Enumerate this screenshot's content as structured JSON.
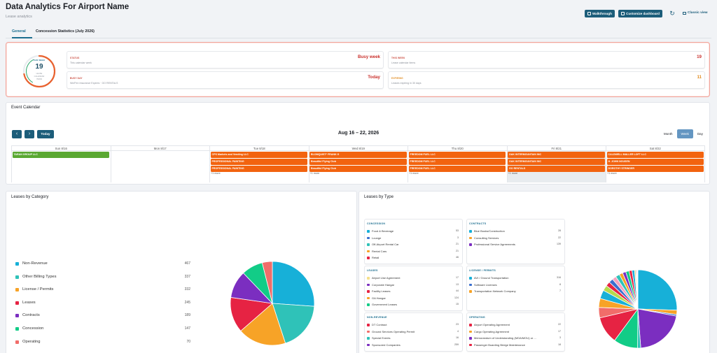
{
  "header": {
    "title": "Data Analytics For Airport Name",
    "subtitle": "Lease analytics",
    "walkthrough_label": "Walkthrough",
    "customize_label": "Customize dashboard",
    "classic_label": "Classic view"
  },
  "tabs": [
    {
      "label": "General",
      "active": true
    },
    {
      "label": "Concession Statistics (July 2026)",
      "active": false
    }
  ],
  "summary": {
    "ring": {
      "label": "THIS WEEK",
      "value": "19",
      "sub1": "LEASE",
      "sub2": "CALENDAR",
      "sub3": "ITEMS",
      "progress": 0.72
    },
    "cards": [
      {
        "label": "STATUS",
        "desc": "This calendar week",
        "value": "Busy week",
        "accent": "red"
      },
      {
        "label": "THIS WEEK",
        "desc": "Lease calendar items",
        "value": "19",
        "accent": "red"
      },
      {
        "label": "BUSY DAY",
        "desc": "We/Fen Insurance Expires · GO RENTALS",
        "value": "Today",
        "accent": "red"
      },
      {
        "label": "EXPIRING",
        "desc": "Leases expiring in 30 days",
        "value": "11",
        "accent": "orange"
      }
    ]
  },
  "calendar": {
    "title": "Event Calendar",
    "range": "Aug 16 – 22, 2026",
    "today_label": "Today",
    "prev_icon": "‹",
    "next_icon": "›",
    "views": [
      {
        "label": "Month",
        "active": false
      },
      {
        "label": "Week",
        "active": true
      },
      {
        "label": "Day",
        "active": false
      }
    ],
    "days": [
      {
        "label": "Sun 8/16",
        "events": [
          "TARAN GROUP LLC"
        ],
        "event_color": "green",
        "more": ""
      },
      {
        "label": "Mon 8/17",
        "events": [],
        "event_color": "orange",
        "more": ""
      },
      {
        "label": "Tue 8/18",
        "events": [
          "CPS Markets and Vending LLC",
          "PROFESSIONAL PAINTING",
          "PROFESSIONAL PAINTING"
        ],
        "event_color": "orange",
        "more": "+1 more"
      },
      {
        "label": "Wed 8/19",
        "events": [
          "BLOMQUIST* FRANK G",
          "Beautiful Flying Club",
          "Beautiful Flying Club"
        ],
        "event_color": "orange",
        "more": "+1 more"
      },
      {
        "label": "Thu 8/20",
        "events": [
          "FREEDOM FUEL LLC",
          "FREEDOM FUEL LLC",
          "FREEDOM FUEL LLC"
        ],
        "event_color": "orange",
        "more": "+1 more"
      },
      {
        "label": "Fri 8/21",
        "events": [
          "OAK INTERMOUNTAIN INC",
          "OAK INTERMOUNTAIN INC",
          "GO RENTALS"
        ],
        "event_color": "orange",
        "more": "+1 more",
        "shade": true
      },
      {
        "label": "Sat 8/22",
        "events": [
          "CALDWELL MALLER LOFT LLC",
          "H. JOHN NOUSEN",
          "DOROTHY STRINGER"
        ],
        "event_color": "orange",
        "more": "+1 more"
      }
    ]
  },
  "leases_by_category": {
    "title": "Leases by Category",
    "chart_data": {
      "type": "pie",
      "categories": [
        "Non-Revenue",
        "Other Billing Types",
        "License / Permits",
        "Leases",
        "Contracts",
        "Concession",
        "Operating"
      ],
      "values": [
        467,
        337,
        332,
        245,
        189,
        147,
        70
      ],
      "colors": [
        "#17b0d8",
        "#2fc2b8",
        "#f7a327",
        "#e62343",
        "#7b2ec0",
        "#12cc87",
        "#f16d6a"
      ]
    }
  },
  "leases_by_type": {
    "title": "Leases by Type",
    "groups": [
      {
        "title": "CONCESSION",
        "items": [
          {
            "label": "Food & Beverage",
            "value": "53",
            "color": "#17b0d8"
          },
          {
            "label": "Lounge",
            "value": "3",
            "color": "#3b6fcf"
          },
          {
            "label": "Off-Airport Rental Car",
            "value": "21",
            "color": "#2fc2b8"
          },
          {
            "label": "Rental Cars",
            "value": "21",
            "color": "#f7a327"
          },
          {
            "label": "Retail",
            "value": "46",
            "color": "#e62343"
          }
        ]
      },
      {
        "title": "CONTRACTS",
        "items": [
          {
            "label": "Blue Books/Construction",
            "value": "28",
            "color": "#17b0d8"
          },
          {
            "label": "Consulting Services",
            "value": "22",
            "color": "#f7a327"
          },
          {
            "label": "Professional Service Agreements",
            "value": "139",
            "color": "#7b2ec0"
          }
        ]
      },
      {
        "title": "LEASES",
        "items": [
          {
            "label": "Airport Use Agreement",
            "value": "17",
            "color": "#f5e08a"
          },
          {
            "label": "Corporate Hangar",
            "value": "13",
            "color": "#7b2ec0"
          },
          {
            "label": "Facility Leases",
            "value": "44",
            "color": "#e62343"
          },
          {
            "label": "GA Hangar",
            "value": "124",
            "color": "#f7a327"
          },
          {
            "label": "Government Leases",
            "value": "15",
            "color": "#12cc87"
          }
        ]
      },
      {
        "title": "LICENSE / PERMITS",
        "items": [
          {
            "label": "AVI / Ground Transportation",
            "value": "316",
            "color": "#17b0d8"
          },
          {
            "label": "Software Licenses",
            "value": "8",
            "color": "#3b6fcf"
          },
          {
            "label": "Transportation Network Company",
            "value": "7",
            "color": "#f7a327"
          }
        ]
      },
      {
        "title": "NON-REVENUE",
        "items": [
          {
            "label": "DT Contract",
            "value": "23",
            "color": "#e62343"
          },
          {
            "label": "Ground Services Operating Permit",
            "value": "4",
            "color": "#f16d6a"
          },
          {
            "label": "Special Events",
            "value": "16",
            "color": "#2fc2b8"
          },
          {
            "label": "Sponsored Companies",
            "value": "259",
            "color": "#7b2ec0"
          }
        ]
      },
      {
        "title": "OPERATING",
        "items": [
          {
            "label": "Airport Operating Agreement",
            "value": "22",
            "color": "#e62343"
          },
          {
            "label": "Cargo Operating Agreement",
            "value": "17",
            "color": "#f7a327"
          },
          {
            "label": "Memorandum of Understanding (MOA/MOU) or ...",
            "value": "3",
            "color": "#7b2ec0"
          },
          {
            "label": "Passenger Boarding Bridge Maintenance",
            "value": "18",
            "color": "#e62343"
          }
        ]
      }
    ],
    "chart_data": {
      "type": "pie",
      "categories": [
        "AVI / Ground Transportation",
        "Consulting Services",
        "Software Licenses",
        "Sponsored Companies",
        "Special Events",
        "GA Hangar",
        "Professional Service Agreements",
        "Food & Beverage",
        "Retail",
        "Facility Leases",
        "Blue Books/Construction",
        "DT Contract",
        "Airport Operating Agreement",
        "Off-Airport Rental Car",
        "Rental Cars",
        "Passenger Boarding Bridge Maintenance",
        "Cargo Operating Agreement",
        "Airport Use Agreement",
        "Government Leases",
        "Corporate Hangar",
        "Transportation Network Company",
        "Ground Services Operating Permit",
        "Lounge",
        "Memorandum of Understanding (MOA/MOU) or ..."
      ],
      "values": [
        316,
        22,
        8,
        259,
        16,
        124,
        139,
        53,
        46,
        44,
        28,
        23,
        22,
        21,
        21,
        18,
        17,
        17,
        15,
        13,
        7,
        4,
        3,
        3
      ],
      "colors": [
        "#17b0d8",
        "#f7a327",
        "#3b6fcf",
        "#7b2ec0",
        "#2fc2b8",
        "#12cc87",
        "#e62343",
        "#f16d6a",
        "#f7a327",
        "#17b0d8",
        "#b6d94c",
        "#e62343",
        "#3b6fcf",
        "#f5a3c0",
        "#2fc2b8",
        "#f7a327",
        "#7b2ec0",
        "#12cc87",
        "#e62343",
        "#17b0d8",
        "#f5e08a",
        "#3b6fcf",
        "#7b2ec0",
        "#f16d6a"
      ]
    }
  }
}
